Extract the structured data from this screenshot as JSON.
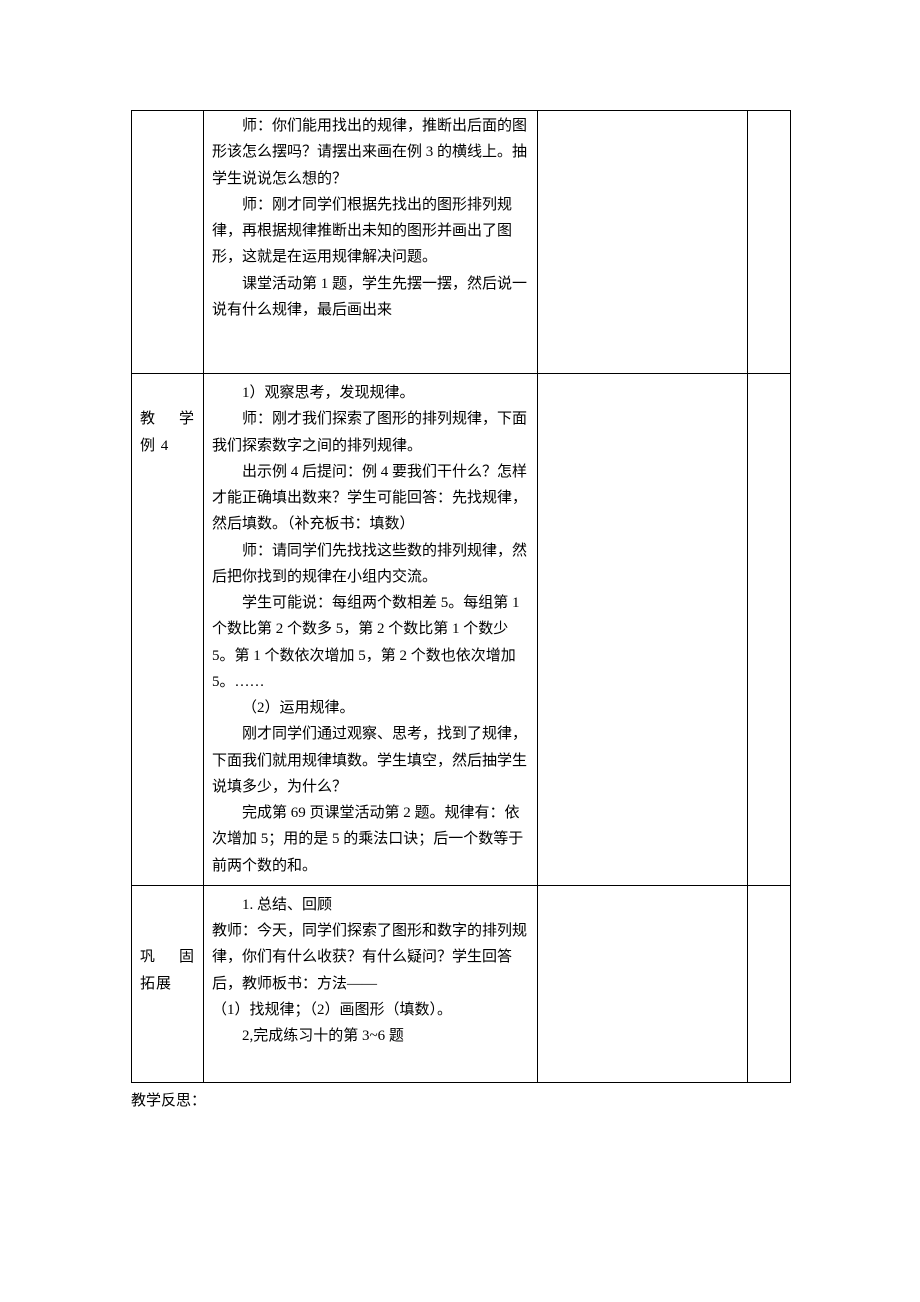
{
  "row1": {
    "label": "",
    "p1": "师：你们能用找出的规律，推断出后面的图形该怎么摆吗？请摆出来画在例 3 的横线上。抽学生说说怎么想的？",
    "p2": "师：刚才同学们根据先找出的图形排列规律，再根据规律推断出未知的图形并画出了图形，这就是在运用规律解决问题。",
    "p3": "课堂活动第 1 题，学生先摆一摆，然后说一说有什么规律，最后画出来"
  },
  "row2": {
    "label_line1_a": "教",
    "label_line1_b": "学",
    "label_line2": "例 4",
    "p1": "1）观察思考，发现规律。",
    "p2": "师：刚才我们探索了图形的排列规律，下面我们探索数字之间的排列规律。",
    "p3": "出示例 4 后提问：例 4 要我们干什么？怎样才能正确填出数来？学生可能回答：先找规律，然后填数。（补充板书：填数）",
    "p4": "师：请同学们先找找这些数的排列规律，然后把你找到的规律在小组内交流。",
    "p5": "学生可能说：每组两个数相差 5。每组第 1 个数比第 2 个数多 5，第 2 个数比第 1 个数少 5。第 1 个数依次增加 5，第 2 个数也依次增加 5。……",
    "p6": "（2）运用规律。",
    "p7": "刚才同学们通过观察、思考，找到了规律，下面我们就用规律填数。学生填空，然后抽学生说填多少，为什么？",
    "p8": "完成第 69 页课堂活动第 2 题。规律有：依次增加 5；用的是 5 的乘法口诀；后一个数等于前两个数的和。"
  },
  "row3": {
    "label_line1_a": "巩",
    "label_line1_b": "固",
    "label_line2": "拓展",
    "p1": "1. 总结、回顾",
    "p2": "教师：今天，同学们探索了图形和数字的排列规律，你们有什么收获？有什么疑问？学生回答后，教师板书：方法——",
    "p3": "（1）找规律；（2）画图形（填数）。",
    "p4": "2,完成练习十的第 3~6 题"
  },
  "footnote": "教学反思："
}
